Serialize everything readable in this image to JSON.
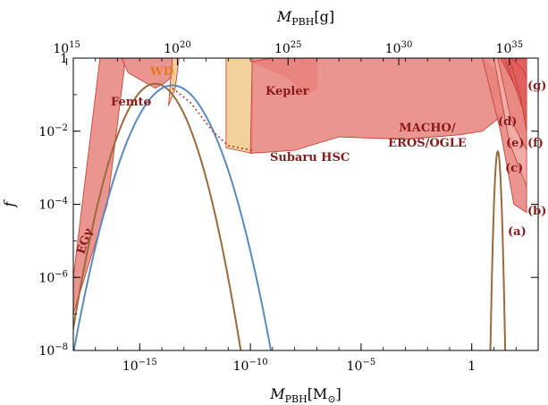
{
  "chart_data": {
    "type": "area",
    "xaxis_bottom": {
      "label": "M",
      "label_sub": "PBH",
      "label_unit": "[M",
      "label_unit_sub": "⊙",
      "label_unit_end": "]",
      "scale": "log",
      "range": [
        1e-18,
        1000.0
      ],
      "ticks": [
        {
          "value": 1e-15,
          "base": "10",
          "exp": "−15"
        },
        {
          "value": 1e-10,
          "base": "10",
          "exp": "−10"
        },
        {
          "value": 1e-05,
          "base": "10",
          "exp": "−5"
        },
        {
          "value": 1,
          "base": "1",
          "exp": ""
        }
      ]
    },
    "xaxis_top": {
      "label": "M",
      "label_sub": "PBH",
      "label_unit": "[g]",
      "scale": "log",
      "ticks": [
        {
          "value": 1000000000000000.0,
          "base": "10",
          "exp": "15"
        },
        {
          "value": 1e+20,
          "base": "10",
          "exp": "20"
        },
        {
          "value": 1e+25,
          "base": "10",
          "exp": "25"
        },
        {
          "value": 1e+30,
          "base": "10",
          "exp": "30"
        },
        {
          "value": 1e+35,
          "base": "10",
          "exp": "35"
        }
      ]
    },
    "yaxis": {
      "label": "f",
      "scale": "log",
      "range": [
        1e-08,
        1
      ],
      "ticks": [
        {
          "value": 1e-08,
          "base": "10",
          "exp": "−8"
        },
        {
          "value": 1e-06,
          "base": "10",
          "exp": "−6"
        },
        {
          "value": 0.0001,
          "base": "10",
          "exp": "−4"
        },
        {
          "value": 0.01,
          "base": "10",
          "exp": "−2"
        },
        {
          "value": 1,
          "base": "1",
          "exp": ""
        }
      ]
    },
    "constraints": [
      {
        "label": "EGγ",
        "color": "#e8827c",
        "points": [
          [
            1e-18,
            1e-06
          ],
          [
            1.6e-17,
            1
          ],
          [
            2e-16,
            1
          ],
          [
            2e-16,
            0.5
          ],
          [
            3.5e-17,
            0.0001
          ],
          [
            1e-18,
            1e-07
          ]
        ]
      },
      {
        "label": "Femto",
        "color": "#e8827c",
        "points": [
          [
            1.5e-16,
            1
          ],
          [
            3e-14,
            1
          ],
          [
            3.5e-14,
            0.35
          ],
          [
            1.5e-14,
            0.22
          ],
          [
            5e-15,
            0.15
          ],
          [
            3e-16,
            0.4
          ]
        ]
      },
      {
        "label": "WD",
        "color": "#f1c98a",
        "points": [
          [
            3e-14,
            1
          ],
          [
            6e-14,
            1
          ],
          [
            4e-14,
            0.15
          ],
          [
            2e-14,
            0.05
          ]
        ]
      },
      {
        "label": "Subaru HSC",
        "color": "#f1c98a",
        "points": [
          [
            8e-12,
            1
          ],
          [
            1.2e-10,
            1
          ],
          [
            1.2e-10,
            0.0025
          ],
          [
            8e-12,
            0.0035
          ]
        ]
      },
      {
        "label": "Kepler",
        "color": "#e8827c",
        "points": [
          [
            1.2e-10,
            1
          ],
          [
            1e-07,
            1
          ],
          [
            1e-07,
            0.15
          ],
          [
            3e-08,
            0.1
          ],
          [
            5e-09,
            0.3
          ],
          [
            1.2e-10,
            0.8
          ]
        ]
      },
      {
        "label": "MACHO/EROS/OGLE",
        "color": "#e8827c",
        "points": [
          [
            1.2e-10,
            0.8
          ],
          [
            1e-09,
            1
          ],
          [
            0.01,
            1
          ],
          [
            3,
            1
          ],
          [
            10,
            0.5
          ],
          [
            30,
            0.03
          ],
          [
            3,
            0.01
          ],
          [
            0.3,
            0.008
          ],
          [
            0.001,
            0.006
          ],
          [
            1e-06,
            0.007
          ],
          [
            1e-08,
            0.003
          ],
          [
            1e-10,
            0.0025
          ]
        ]
      },
      {
        "label": "(a)",
        "color": "#e8827c",
        "points": [
          [
            3,
            1
          ],
          [
            300,
            1
          ],
          [
            300,
            6e-05
          ],
          [
            80,
            0.0001
          ],
          [
            20,
            0.01
          ]
        ]
      },
      {
        "label": "(b)",
        "color": "#f3b0ac",
        "points": [
          [
            10,
            1
          ],
          [
            300,
            1
          ],
          [
            300,
            0.0003
          ],
          [
            50,
            0.005
          ]
        ]
      },
      {
        "label": "(c)",
        "color": "#e8827c",
        "points": [
          [
            15,
            1
          ],
          [
            300,
            1
          ],
          [
            300,
            0.003
          ],
          [
            60,
            0.02
          ]
        ]
      },
      {
        "label": "(d)",
        "color": "#e06060",
        "points": [
          [
            20,
            1
          ],
          [
            300,
            1
          ],
          [
            300,
            0.05
          ],
          [
            80,
            0.2
          ]
        ]
      },
      {
        "label": "(e)",
        "color": "#e06060",
        "points": [
          [
            30,
            1
          ],
          [
            300,
            1
          ],
          [
            300,
            0.02
          ],
          [
            120,
            0.1
          ]
        ]
      },
      {
        "label": "(f)",
        "color": "#e06060",
        "points": [
          [
            50,
            1
          ],
          [
            300,
            1
          ],
          [
            300,
            0.01
          ],
          [
            150,
            0.1
          ]
        ]
      },
      {
        "label": "(g)",
        "color": "#e06060",
        "points": [
          [
            60,
            1
          ],
          [
            300,
            1
          ],
          [
            300,
            0.3
          ],
          [
            200,
            0.5
          ]
        ]
      }
    ],
    "curves": [
      {
        "color": "#9a6a3a",
        "peak_x": 5e-15,
        "peak_y": 0.2,
        "width_decades": 4.5
      },
      {
        "color": "#5a8ac0",
        "peak_x": 3e-14,
        "peak_y": 0.18,
        "width_decades": 5.2
      },
      {
        "color": "#9a6a3a",
        "peak_x": 15,
        "peak_y": 0.0028,
        "width_decades": 0.45
      }
    ]
  }
}
